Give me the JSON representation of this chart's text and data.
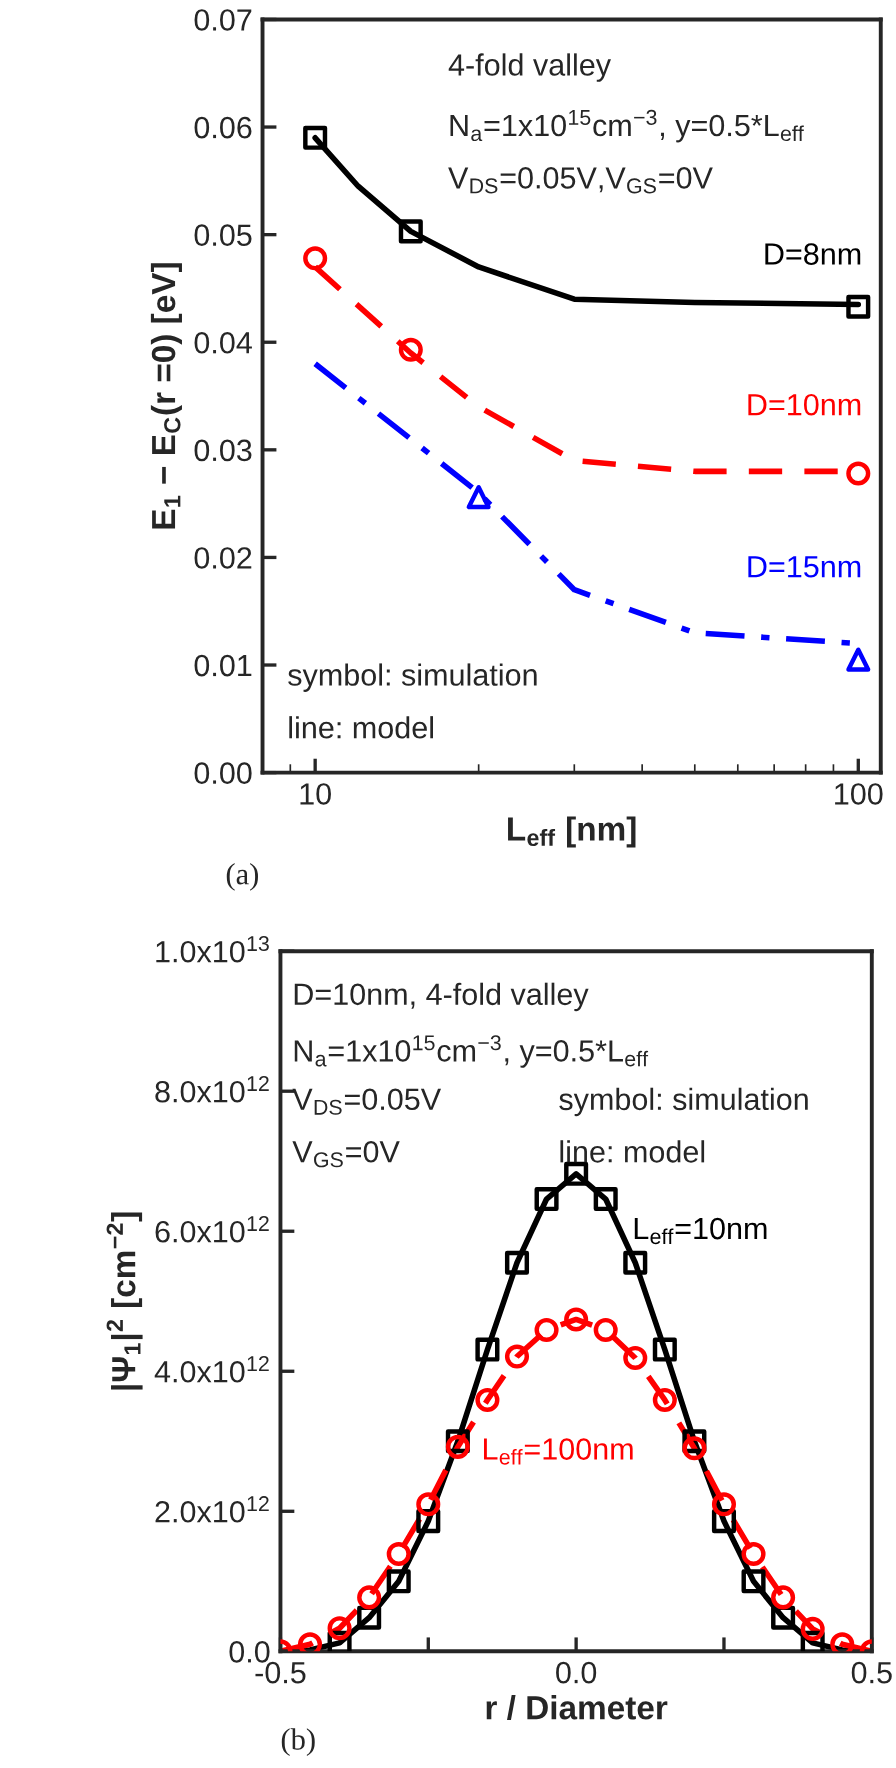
{
  "chart_data": [
    {
      "type": "line",
      "xlabel": "L$_{eff}$ [nm]",
      "ylabel": "E$_{1}$ − E$_{C}$(r =0) [eV]",
      "log": "x",
      "xlim": [
        8,
        110
      ],
      "xticks": [
        10,
        100
      ],
      "ylim": [
        0,
        0.07
      ],
      "yticks": [
        {
          "value": 0,
          "label": "0.00"
        },
        {
          "value": 0.01,
          "label": "0.01"
        },
        {
          "value": 0.02,
          "label": "0.02"
        },
        {
          "value": 0.03,
          "label": "0.03"
        },
        {
          "value": 0.04,
          "label": "0.04"
        },
        {
          "value": 0.05,
          "label": "0.05"
        },
        {
          "value": 0.06,
          "label": "0.06"
        },
        {
          "value": 0.07,
          "label": "0.07"
        }
      ],
      "annotations": [
        "4-fold valley",
        "N$_{a}$=1x10$^{15}$cm$^{−3}$, y=0.5*L$_{eff}$",
        "V$_{DS}$=0.05V,V$_{GS}$=0V",
        "symbol: simulation",
        "line: model",
        "(a)"
      ],
      "series": [
        {
          "name": "D=8nm",
          "color": "#000000",
          "line_style": "solid",
          "marker": "none",
          "x": [
            10,
            12,
            15,
            20,
            30,
            50,
            100
          ],
          "values": [
            0.059,
            0.0545,
            0.0503,
            0.047,
            0.044,
            0.0437,
            0.0435
          ]
        },
        {
          "type": "scatter",
          "color": "#000000",
          "marker": "square",
          "x": [
            10,
            15,
            100
          ],
          "values": [
            0.059,
            0.0503,
            0.0433
          ]
        },
        {
          "name": "D=10nm",
          "color": "#ff0000",
          "line_style": "dashed",
          "marker": "none",
          "x": [
            10,
            15,
            20,
            30,
            50,
            100
          ],
          "values": [
            0.047,
            0.039,
            0.034,
            0.029,
            0.028,
            0.028
          ]
        },
        {
          "type": "scatter",
          "color": "#ff0000",
          "marker": "circle",
          "x": [
            10,
            15,
            100
          ],
          "values": [
            0.0478,
            0.0393,
            0.0278
          ]
        },
        {
          "name": "D=15nm",
          "color": "#0000ff",
          "line_style": "dashdot",
          "marker": "none",
          "x": [
            10,
            15,
            20,
            30,
            50,
            100
          ],
          "values": [
            0.038,
            0.031,
            0.026,
            0.017,
            0.013,
            0.012
          ]
        },
        {
          "type": "scatter",
          "color": "#0000ff",
          "marker": "triangle",
          "x": [
            20,
            100
          ],
          "values": [
            0.0256,
            0.0105
          ]
        }
      ]
    },
    {
      "type": "line",
      "xlabel": "r / Diameter",
      "ylabel": "|Ψ$_{1}$|$^{2}$ [cm$^{−2}$]",
      "xlim": [
        -0.5,
        0.5
      ],
      "xticks": [
        {
          "value": -0.5,
          "label": "-0.5"
        },
        {
          "value": -0.25,
          "label": null
        },
        {
          "value": 0,
          "label": "0.0"
        },
        {
          "value": 0.25,
          "label": null
        },
        {
          "value": 0.5,
          "label": "0.5"
        }
      ],
      "ylim": [
        0,
        10000000000000.0
      ],
      "yticks": [
        {
          "value": 0,
          "label": "0.0"
        },
        {
          "value": 2000000000000.0,
          "label": "2.0x10$^{12}$"
        },
        {
          "value": 4000000000000.0,
          "label": "4.0x10$^{12}$"
        },
        {
          "value": 6000000000000.0,
          "label": "6.0x10$^{12}$"
        },
        {
          "value": 8000000000000.0,
          "label": "8.0x10$^{12}$"
        },
        {
          "value": 10000000000000.0,
          "label": "1.0x10$^{13}$"
        }
      ],
      "annotations": [
        "D=10nm, 4-fold valley",
        "N$_{a}$=1x10$^{15}$cm$^{−3}$, y=0.5*L$_{eff}$",
        "V$_{DS}$=0.05V",
        "V$_{GS}$=0V",
        "symbol: simulation",
        "line: model",
        "(b)"
      ],
      "series": [
        {
          "name": "L$_{eff}$=10nm",
          "color": "#000000",
          "line_style": "solid",
          "marker": "none",
          "x": [
            -0.5,
            -0.45,
            -0.4,
            -0.35,
            -0.3,
            -0.25,
            -0.2,
            -0.15,
            -0.1,
            -0.05,
            0,
            0.05,
            0.1,
            0.15,
            0.2,
            0.25,
            0.3,
            0.35,
            0.4,
            0.45,
            0.5
          ],
          "values": [
            0,
            20000000000.0,
            120000000000.0,
            480000000000.0,
            1000000000000.0,
            1860000000000.0,
            3000000000000.0,
            4310000000000.0,
            5550000000000.0,
            6460000000000.0,
            6820000000000.0,
            6460000000000.0,
            5550000000000.0,
            4310000000000.0,
            3000000000000.0,
            1860000000000.0,
            1000000000000.0,
            480000000000.0,
            120000000000.0,
            20000000000.0,
            0
          ]
        },
        {
          "type": "scatter",
          "color": "#000000",
          "marker": "square",
          "x": [
            -0.4,
            -0.35,
            -0.3,
            -0.25,
            -0.2,
            -0.15,
            -0.1,
            -0.05,
            0,
            0.05,
            0.1,
            0.15,
            0.2,
            0.25,
            0.3,
            0.35,
            0.4
          ],
          "values": [
            120000000000.0,
            480000000000.0,
            1000000000000.0,
            1860000000000.0,
            3000000000000.0,
            4310000000000.0,
            5550000000000.0,
            6460000000000.0,
            6820000000000.0,
            6460000000000.0,
            5550000000000.0,
            4310000000000.0,
            3000000000000.0,
            1860000000000.0,
            1000000000000.0,
            480000000000.0,
            120000000000.0
          ]
        },
        {
          "name": "L$_{eff}$=100nm",
          "color": "#ff0000",
          "line_style": "dashed",
          "marker": "none",
          "x": [
            -0.5,
            -0.45,
            -0.4,
            -0.35,
            -0.3,
            -0.25,
            -0.2,
            -0.15,
            -0.1,
            -0.05,
            0,
            0.05,
            0.1,
            0.15,
            0.2,
            0.25,
            0.3,
            0.35,
            0.4,
            0.45,
            0.5
          ],
          "values": [
            0,
            100000000000.0,
            330000000000.0,
            770000000000.0,
            1390000000000.0,
            2100000000000.0,
            2920000000000.0,
            3590000000000.0,
            4210000000000.0,
            4590000000000.0,
            4740000000000.0,
            4590000000000.0,
            4190000000000.0,
            3590000000000.0,
            2900000000000.0,
            2100000000000.0,
            1390000000000.0,
            770000000000.0,
            320000000000.0,
            100000000000.0,
            0
          ]
        },
        {
          "type": "scatter",
          "color": "#ff0000",
          "marker": "circle",
          "x": [
            -0.5,
            -0.45,
            -0.4,
            -0.35,
            -0.3,
            -0.25,
            -0.2,
            -0.15,
            -0.1,
            -0.05,
            0,
            0.05,
            0.1,
            0.15,
            0.2,
            0.25,
            0.3,
            0.35,
            0.4,
            0.45,
            0.5
          ],
          "values": [
            0,
            100000000000.0,
            330000000000.0,
            770000000000.0,
            1390000000000.0,
            2100000000000.0,
            2920000000000.0,
            3590000000000.0,
            4210000000000.0,
            4590000000000.0,
            4740000000000.0,
            4590000000000.0,
            4190000000000.0,
            3590000000000.0,
            2900000000000.0,
            2100000000000.0,
            1390000000000.0,
            770000000000.0,
            320000000000.0,
            100000000000.0,
            0
          ]
        }
      ]
    }
  ]
}
